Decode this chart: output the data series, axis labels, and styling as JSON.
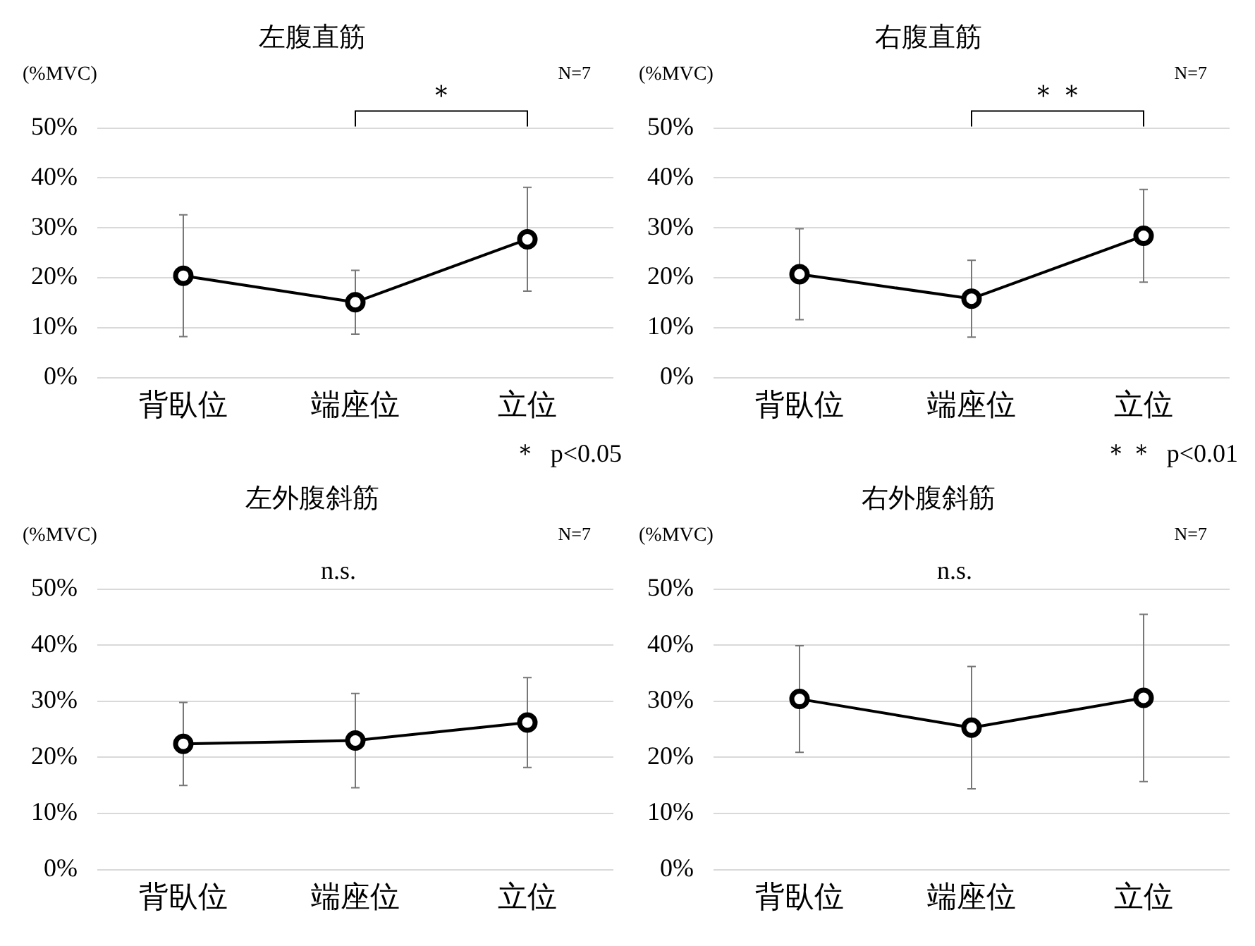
{
  "chart_data": [
    {
      "type": "line",
      "title": "左腹直筋",
      "ylabel": "(%MVC)",
      "categories": [
        "背臥位",
        "端座位",
        "立位"
      ],
      "series": [
        {
          "color": "#000000",
          "values": [
            20.4,
            15.1,
            27.7
          ],
          "errors": [
            12.2,
            6.4,
            10.4
          ]
        }
      ],
      "ylim": [
        0,
        50
      ],
      "yticks": [
        {
          "value": 0,
          "label": "0%"
        },
        {
          "value": 10,
          "label": "10%"
        },
        {
          "value": 20,
          "label": "20%"
        },
        {
          "value": 30,
          "label": "30%"
        },
        {
          "value": 40,
          "label": "40%"
        },
        {
          "value": 50,
          "label": "50%"
        }
      ],
      "grid": "y",
      "marker": "circle",
      "line_style": "solid",
      "legend": false,
      "annotations": [
        "N=7",
        "＊",
        "＊  p<0.05"
      ]
    },
    {
      "type": "line",
      "title": "右腹直筋",
      "ylabel": "(%MVC)",
      "categories": [
        "背臥位",
        "端座位",
        "立位"
      ],
      "series": [
        {
          "color": "#000000",
          "values": [
            20.7,
            15.8,
            28.4
          ],
          "errors": [
            9.1,
            7.7,
            9.3
          ]
        }
      ],
      "ylim": [
        0,
        50
      ],
      "yticks": [
        {
          "value": 0,
          "label": "0%"
        },
        {
          "value": 10,
          "label": "10%"
        },
        {
          "value": 20,
          "label": "20%"
        },
        {
          "value": 30,
          "label": "30%"
        },
        {
          "value": 40,
          "label": "40%"
        },
        {
          "value": 50,
          "label": "50%"
        }
      ],
      "grid": "y",
      "marker": "circle",
      "line_style": "solid",
      "legend": false,
      "annotations": [
        "N=7",
        "＊＊",
        "＊＊  p<0.01"
      ]
    },
    {
      "type": "line",
      "title": "左外腹斜筋",
      "ylabel": "(%MVC)",
      "categories": [
        "背臥位",
        "端座位",
        "立位"
      ],
      "series": [
        {
          "color": "#000000",
          "values": [
            22.4,
            23.0,
            26.2
          ],
          "errors": [
            7.4,
            8.4,
            8.0
          ]
        }
      ],
      "ylim": [
        0,
        50
      ],
      "yticks": [
        {
          "value": 0,
          "label": "0%"
        },
        {
          "value": 10,
          "label": "10%"
        },
        {
          "value": 20,
          "label": "20%"
        },
        {
          "value": 30,
          "label": "30%"
        },
        {
          "value": 40,
          "label": "40%"
        },
        {
          "value": 50,
          "label": "50%"
        }
      ],
      "grid": "y",
      "marker": "circle",
      "line_style": "solid",
      "legend": false,
      "annotations": [
        "N=7",
        "n.s."
      ]
    },
    {
      "type": "line",
      "title": "右外腹斜筋",
      "ylabel": "(%MVC)",
      "categories": [
        "背臥位",
        "端座位",
        "立位"
      ],
      "series": [
        {
          "color": "#000000",
          "values": [
            30.4,
            25.3,
            30.6
          ],
          "errors": [
            9.5,
            10.9,
            14.9
          ]
        }
      ],
      "ylim": [
        0,
        50
      ],
      "yticks": [
        {
          "value": 0,
          "label": "0%"
        },
        {
          "value": 10,
          "label": "10%"
        },
        {
          "value": 20,
          "label": "20%"
        },
        {
          "value": 30,
          "label": "30%"
        },
        {
          "value": 40,
          "label": "40%"
        },
        {
          "value": 50,
          "label": "50%"
        }
      ],
      "grid": "y",
      "marker": "circle",
      "line_style": "solid",
      "legend": false,
      "annotations": [
        "N=7",
        "n.s."
      ]
    }
  ]
}
